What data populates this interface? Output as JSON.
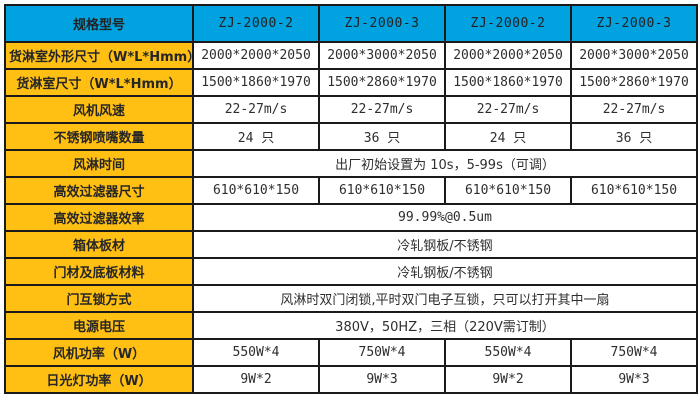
{
  "colors": {
    "header_bg": "#00a2e0",
    "label_bg": "#ffc013",
    "border": "#1a1a1a",
    "text": "#2e2e2e"
  },
  "table": {
    "header": {
      "label": "规格型号",
      "models": [
        "ZJ-2000-2",
        "ZJ-2000-3",
        "ZJ-2000-2",
        "ZJ-2000-3"
      ]
    },
    "rows": [
      {
        "label": "货淋室外形尺寸（W*L*Hmm）",
        "values": [
          "2000*2000*2050",
          "2000*3000*2050",
          "2000*2000*2050",
          "2000*3000*2050"
        ]
      },
      {
        "label": "货淋室尺寸（W*L*Hmm）",
        "values": [
          "1500*1860*1970",
          "1500*2860*1970",
          "1500*1860*1970",
          "1500*2860*1970"
        ]
      },
      {
        "label": "风机风速",
        "values": [
          "22-27m/s",
          "22-27m/s",
          "22-27m/s",
          "22-27m/s"
        ]
      },
      {
        "label": "不锈钢喷嘴数量",
        "values": [
          "24 只",
          "36 只",
          "24 只",
          "36 只"
        ]
      },
      {
        "label": "风淋时间",
        "merged": "出厂初始设置为 10s，5-99s（可调）"
      },
      {
        "label": "高效过滤器尺寸",
        "values": [
          "610*610*150",
          "610*610*150",
          "610*610*150",
          "610*610*150"
        ]
      },
      {
        "label": "高效过滤器效率",
        "merged": "99.99%@0.5um"
      },
      {
        "label": "箱体板材",
        "merged": "冷轧钢板/不锈钢"
      },
      {
        "label": "门材及底板材料",
        "merged": "冷轧钢板/不锈钢"
      },
      {
        "label": "门互锁方式",
        "merged": "风淋时双门闭锁,平时双门电子互锁，只可以打开其中一扇"
      },
      {
        "label": "电源电压",
        "merged": "380V，50HZ，三相（220V需订制）"
      },
      {
        "label": "风机功率（W）",
        "values": [
          "550W*4",
          "750W*4",
          "550W*4",
          "750W*4"
        ]
      },
      {
        "label": "日光灯功率（W）",
        "values": [
          "9W*2",
          "9W*3",
          "9W*2",
          "9W*3"
        ]
      }
    ]
  }
}
